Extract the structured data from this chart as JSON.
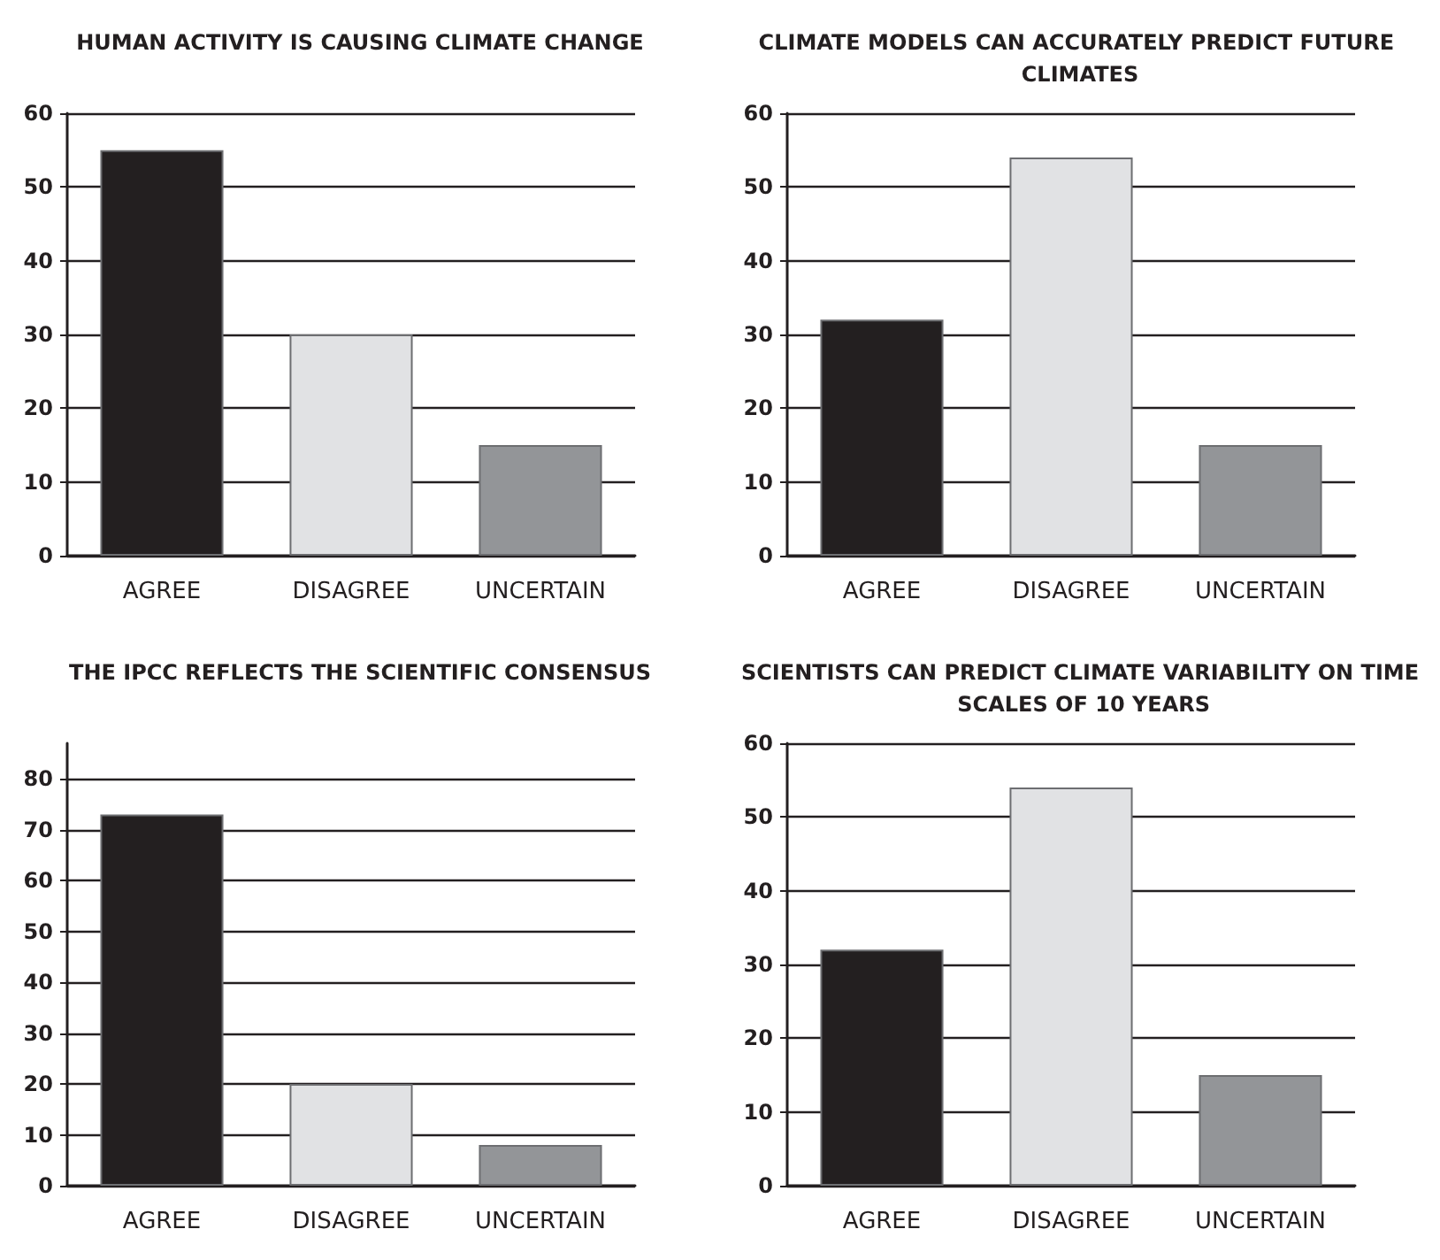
{
  "chart_data": [
    {
      "type": "bar",
      "title": "HUMAN ACTIVITY IS CAUSING CLIMATE CHANGE",
      "categories": [
        "AGREE",
        "DISAGREE",
        "UNCERTAIN"
      ],
      "values": [
        55,
        30,
        15
      ],
      "colors": [
        "#231f20",
        "#e1e2e4",
        "#939598"
      ],
      "ylim": [
        0,
        60
      ],
      "yticks": [
        0,
        10,
        20,
        30,
        40,
        50,
        60
      ],
      "grid": "y"
    },
    {
      "type": "bar",
      "title": "CLIMATE MODELS CAN ACCURATELY PREDICT FUTURE CLIMATES",
      "categories": [
        "AGREE",
        "DISAGREE",
        "UNCERTAIN"
      ],
      "values": [
        32,
        54,
        15
      ],
      "colors": [
        "#231f20",
        "#e1e2e4",
        "#939598"
      ],
      "ylim": [
        0,
        60
      ],
      "yticks": [
        0,
        10,
        20,
        30,
        40,
        50,
        60
      ],
      "grid": "y"
    },
    {
      "type": "bar",
      "title": "THE IPCC REFLECTS THE SCIENTIFIC CONSENSUS",
      "categories": [
        "AGREE",
        "DISAGREE",
        "UNCERTAIN"
      ],
      "values": [
        73,
        20,
        8
      ],
      "colors": [
        "#231f20",
        "#e1e2e4",
        "#939598"
      ],
      "ylim": [
        0,
        87
      ],
      "yticks": [
        0,
        10,
        20,
        30,
        40,
        50,
        60,
        70,
        80
      ],
      "grid": "y"
    },
    {
      "type": "bar",
      "title": "SCIENTISTS CAN PREDICT CLIMATE VARIABILITY ON TIME SCALES OF 10 YEARS",
      "categories": [
        "AGREE",
        "DISAGREE",
        "UNCERTAIN"
      ],
      "values": [
        32,
        54,
        15
      ],
      "colors": [
        "#231f20",
        "#e1e2e4",
        "#939598"
      ],
      "ylim": [
        0,
        60
      ],
      "yticks": [
        0,
        10,
        20,
        30,
        40,
        50,
        60
      ],
      "grid": "y"
    }
  ]
}
